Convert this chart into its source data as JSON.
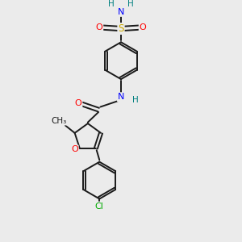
{
  "bg_color": "#ebebeb",
  "atom_colors": {
    "C": "#1a1a1a",
    "N": "#0000ff",
    "O": "#ff0000",
    "S": "#ccaa00",
    "Cl": "#00aa00",
    "H": "#008080"
  },
  "bond_color": "#1a1a1a",
  "bond_width": 1.4,
  "figsize": [
    3.0,
    3.0
  ],
  "dpi": 100
}
